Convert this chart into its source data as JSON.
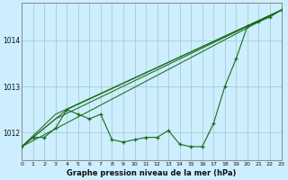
{
  "title": "Graphe pression niveau de la mer (hPa)",
  "bg_color": "#cceeff",
  "grid_color": "#aacccc",
  "line_color": "#1a6b1a",
  "spine_color": "#888888",
  "x_min": 0,
  "x_max": 23,
  "y_min": 1011.4,
  "y_max": 1014.8,
  "yticks": [
    1012,
    1013,
    1014
  ],
  "xticks": [
    0,
    1,
    2,
    3,
    4,
    5,
    6,
    7,
    8,
    9,
    10,
    11,
    12,
    13,
    14,
    15,
    16,
    17,
    18,
    19,
    20,
    21,
    22,
    23
  ],
  "series": [
    {
      "x": [
        0,
        1,
        2,
        3,
        4,
        5,
        6,
        7,
        8,
        9,
        10,
        11,
        12,
        13,
        14,
        15,
        16,
        17,
        18,
        19,
        20,
        21,
        22,
        23
      ],
      "y": [
        1011.7,
        1011.9,
        1011.9,
        1012.1,
        1012.5,
        1012.4,
        1012.3,
        1012.4,
        1011.85,
        1011.8,
        1011.85,
        1011.9,
        1011.9,
        1012.05,
        1011.75,
        1011.7,
        1011.7,
        1012.2,
        1013.0,
        1013.6,
        1014.3,
        1014.4,
        1014.5,
        1014.65
      ],
      "marker": true
    },
    {
      "x": [
        0,
        23
      ],
      "y": [
        1011.7,
        1014.65
      ],
      "marker": false
    },
    {
      "x": [
        0,
        4,
        23
      ],
      "y": [
        1011.7,
        1012.5,
        1014.65
      ],
      "marker": false
    },
    {
      "x": [
        0,
        3,
        23
      ],
      "y": [
        1011.7,
        1012.4,
        1014.65
      ],
      "marker": false
    },
    {
      "x": [
        0,
        3,
        23
      ],
      "y": [
        1011.7,
        1012.3,
        1014.65
      ],
      "marker": false
    }
  ]
}
